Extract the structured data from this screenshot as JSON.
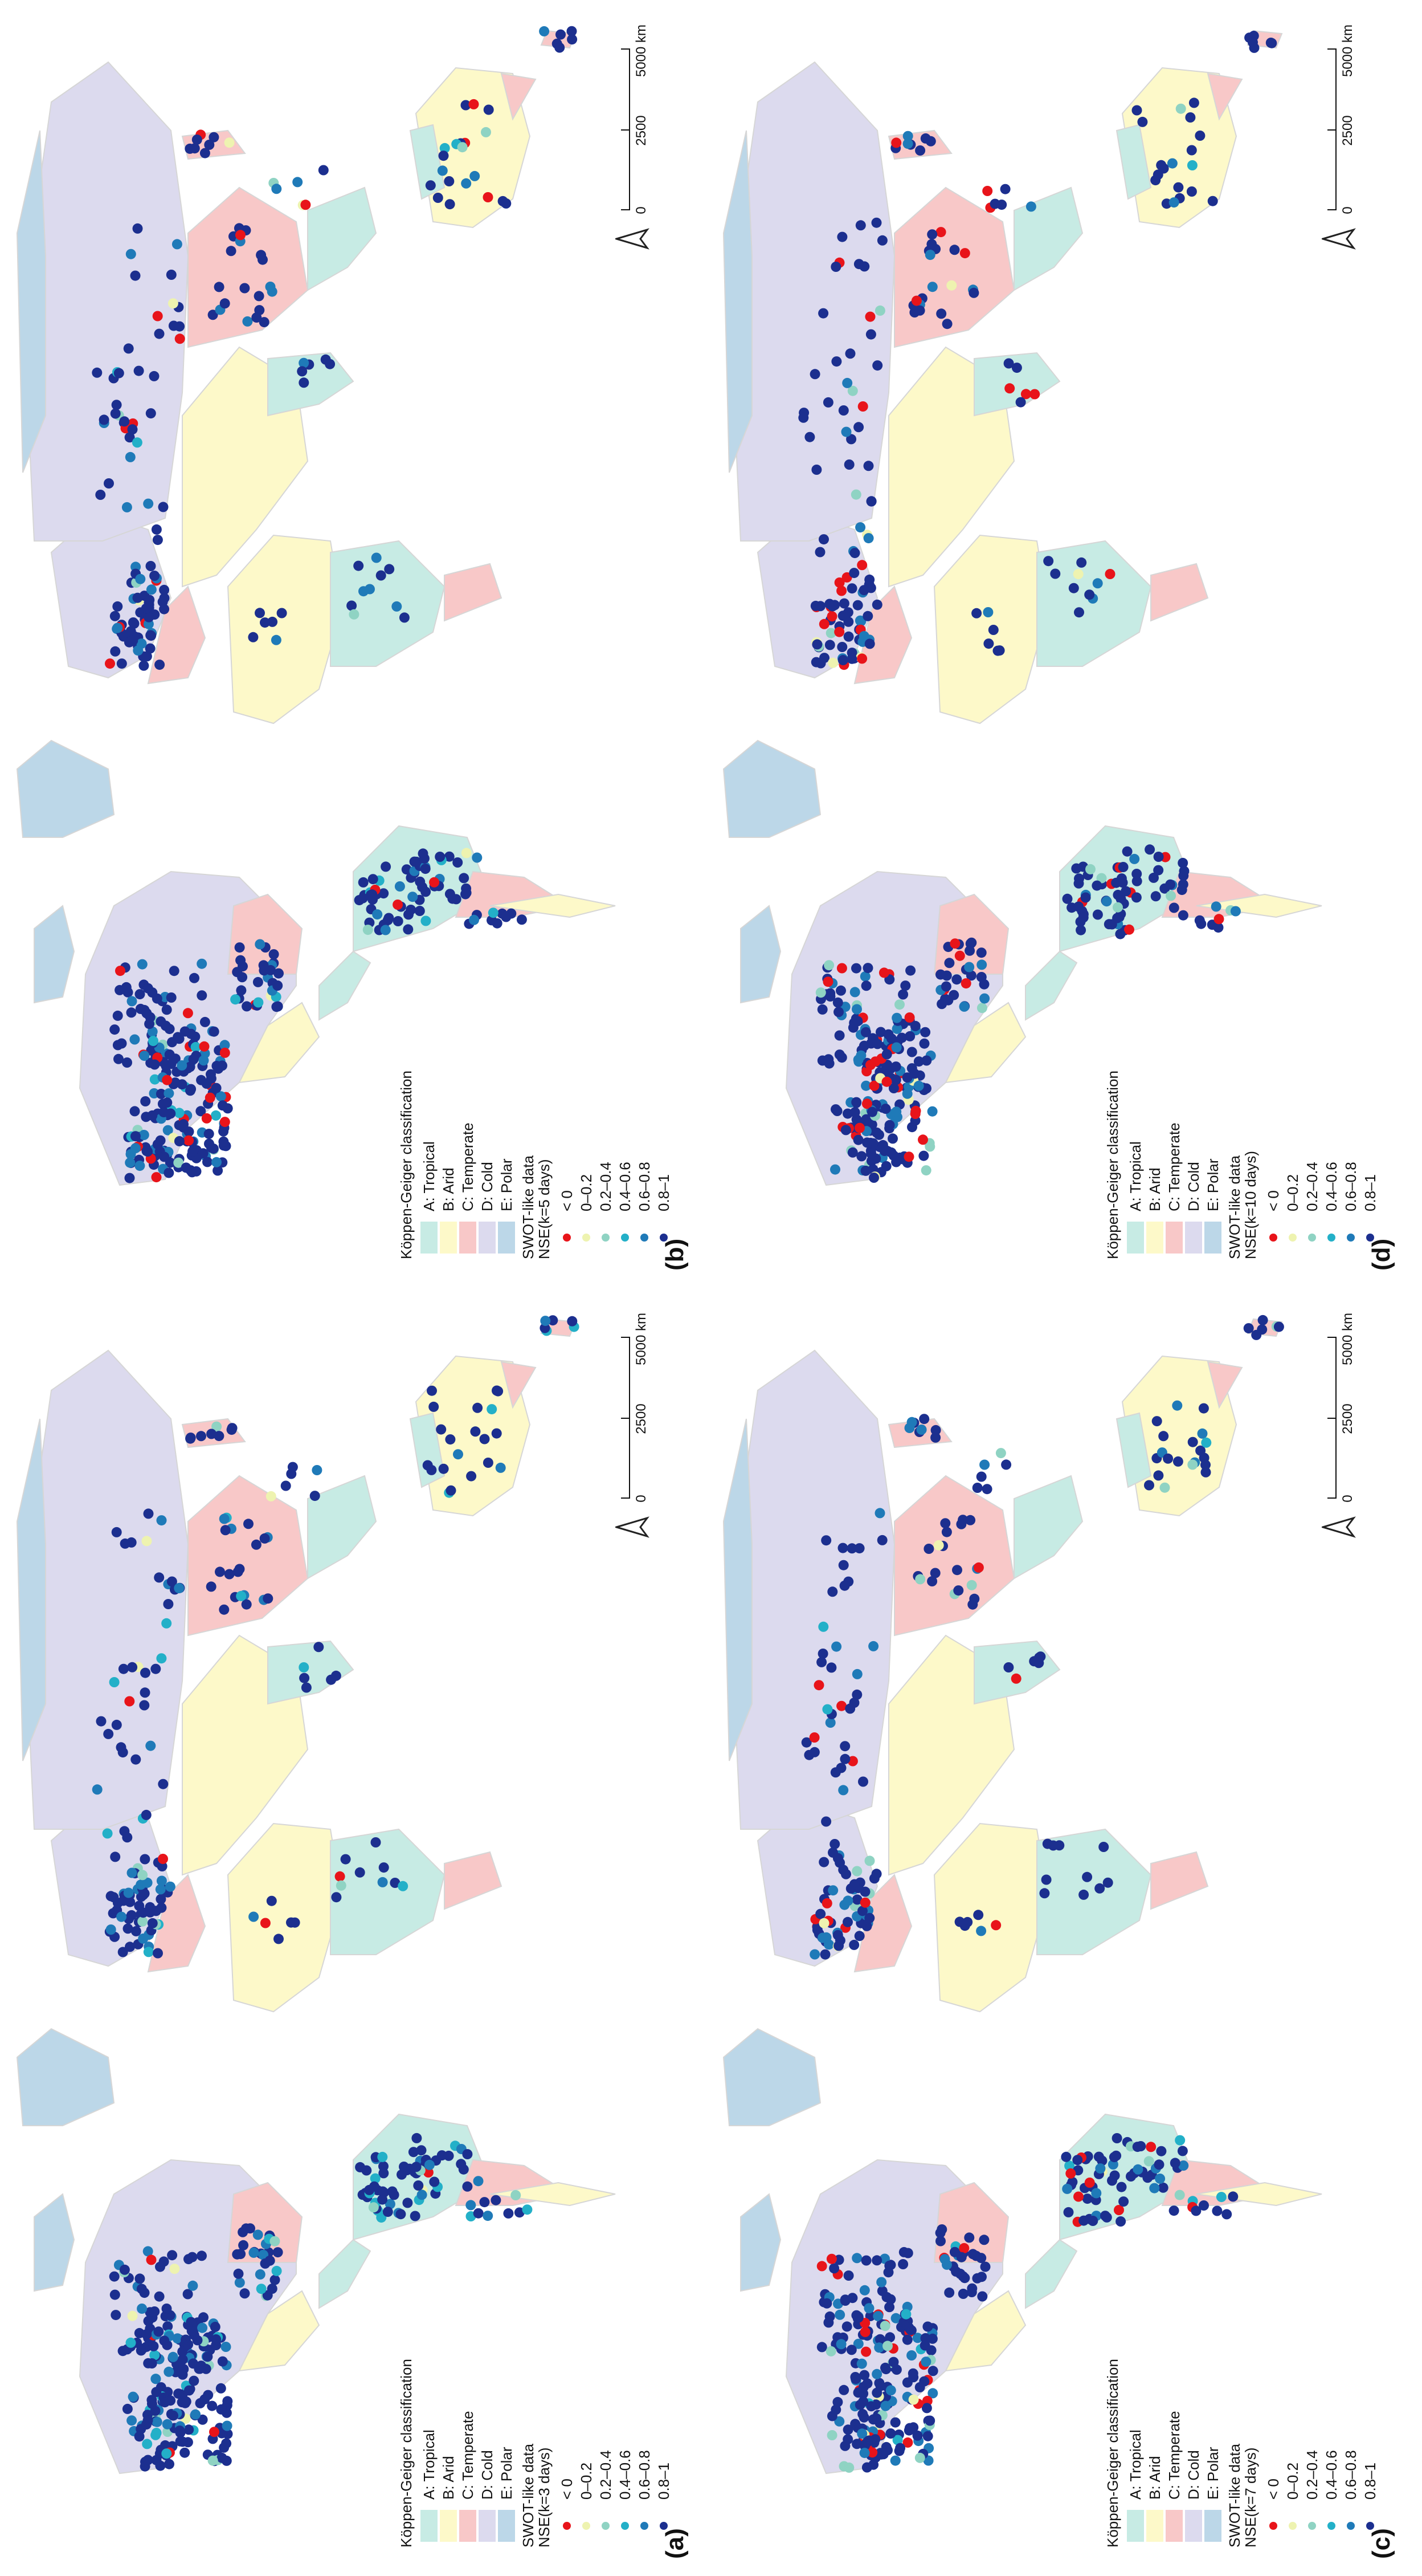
{
  "figure": {
    "panels": [
      {
        "id": "a",
        "label": "(a)",
        "nse_title": "NSE(k=3 days)"
      },
      {
        "id": "b",
        "label": "(b)",
        "nse_title": "NSE(k=5 days)"
      },
      {
        "id": "c",
        "label": "(c)",
        "nse_title": "NSE(k=7 days)"
      },
      {
        "id": "d",
        "label": "(d)",
        "nse_title": "NSE(k=10 days)"
      }
    ],
    "legend": {
      "climate_title": "Köppen-Geiger classification",
      "climate_classes": [
        {
          "label": "A: Tropical",
          "color": "#c7ebe4"
        },
        {
          "label": "B: Arid",
          "color": "#fdf9c9"
        },
        {
          "label": "C: Temperate",
          "color": "#f8c8c8"
        },
        {
          "label": "D: Cold",
          "color": "#dcdaee"
        },
        {
          "label": "E: Polar",
          "color": "#bcd7e8"
        }
      ],
      "swot_title": "SWOT-like data",
      "nse_classes": [
        {
          "label": "< 0",
          "color": "#e8141a"
        },
        {
          "label": "0–0.2",
          "color": "#eef3b0"
        },
        {
          "label": "0.2–0.4",
          "color": "#8fd3c3"
        },
        {
          "label": "0.4–0.6",
          "color": "#23b0c8"
        },
        {
          "label": "0.6–0.8",
          "color": "#1f7ab8"
        },
        {
          "label": "0.8–1",
          "color": "#1c2f8f"
        }
      ]
    },
    "scale_bar": {
      "ticks": [
        "0",
        "2500",
        "5000 km"
      ]
    },
    "north_arrow": "north-arrow-icon",
    "map_colors": {
      "ocean": "#ffffff",
      "border": "#d6d6d6"
    }
  }
}
